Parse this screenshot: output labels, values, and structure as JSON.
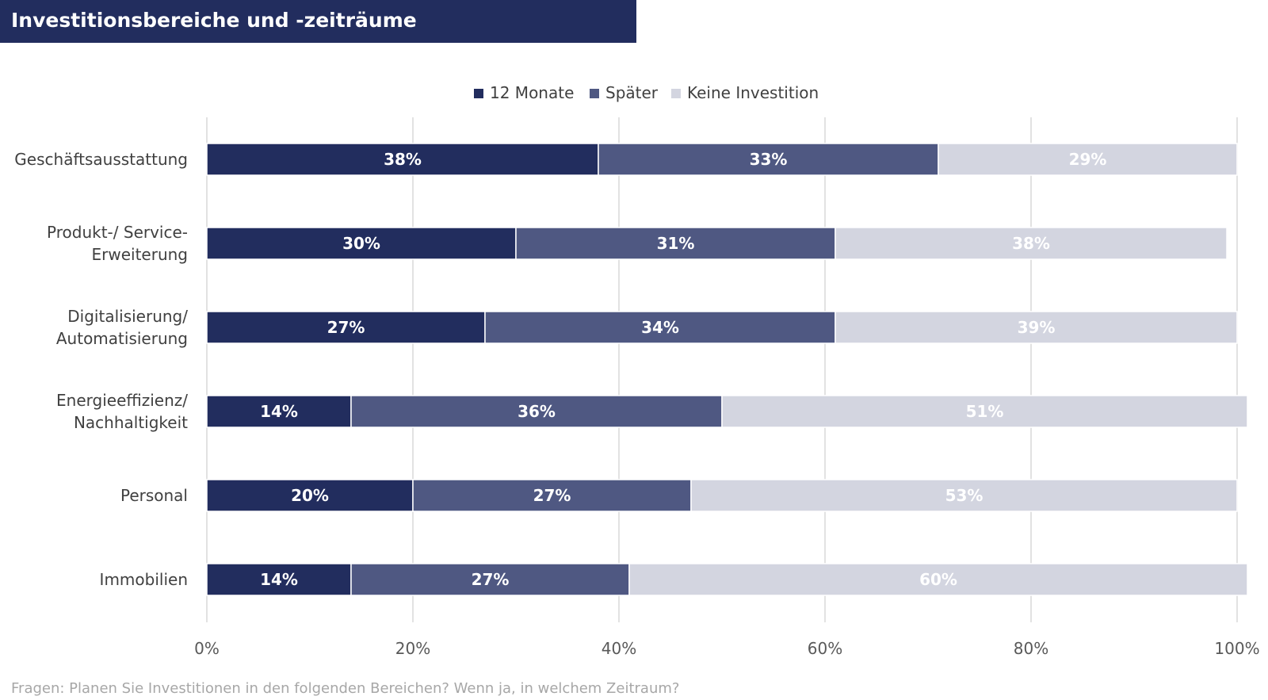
{
  "header": {
    "title": "Investitionsbereiche und -zeiträume"
  },
  "footnote": "Fragen: Planen Sie Investitionen in den folgenden Bereichen? Wenn ja, in welchem Zeitraum?",
  "chart_data": {
    "type": "bar",
    "orientation": "horizontal",
    "stacked": true,
    "title": "Investitionsbereiche und -zeiträume",
    "categories": [
      [
        "Geschäftsausstattung"
      ],
      [
        "Produkt-/ Service-",
        "Erweiterung"
      ],
      [
        "Digitalisierung/",
        "Automatisierung"
      ],
      [
        "Energieeffizienz/",
        "Nachhaltigkeit"
      ],
      [
        "Personal"
      ],
      [
        "Immobilien"
      ]
    ],
    "series": [
      {
        "name": "12 Monate",
        "color": "#222d5e",
        "label_color": "#ffffff",
        "values": [
          38,
          30,
          27,
          14,
          20,
          14
        ]
      },
      {
        "name": "Später",
        "color": "#4f5882",
        "label_color": "#ffffff",
        "values": [
          33,
          31,
          34,
          36,
          27,
          27
        ]
      },
      {
        "name": "Keine Investition",
        "color": "#d3d5e0",
        "label_color": "#ffffff",
        "values": [
          29,
          38,
          39,
          51,
          53,
          60
        ]
      }
    ],
    "value_suffix": "%",
    "xlim": [
      0,
      100
    ],
    "xticks": [
      "0%",
      "20%",
      "40%",
      "60%",
      "80%",
      "100%"
    ],
    "grid": true,
    "legend_position": "top-center"
  }
}
